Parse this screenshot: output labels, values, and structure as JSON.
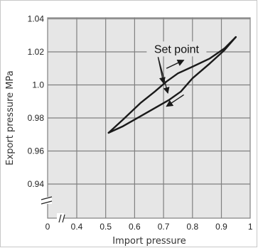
{
  "chart_data": {
    "type": "line",
    "title": "",
    "xlabel": "Import pressure",
    "ylabel": "Export pressure MPa",
    "xlim": [
      0.35,
      1.0
    ],
    "ylim": [
      0.92,
      1.04
    ],
    "x_ticks": [
      {
        "value": 0.4,
        "label": "0.4"
      },
      {
        "value": 0.5,
        "label": "0.5"
      },
      {
        "value": 0.6,
        "label": "0.6"
      },
      {
        "value": 0.7,
        "label": "0.7"
      },
      {
        "value": 0.8,
        "label": "0.8"
      },
      {
        "value": 0.9,
        "label": "0.9"
      },
      {
        "value": 1.0,
        "label": "1"
      }
    ],
    "x_zero_label": "0",
    "y_ticks": [
      {
        "value": 0.94,
        "label": "0.94"
      },
      {
        "value": 0.96,
        "label": "0.96"
      },
      {
        "value": 0.98,
        "label": "0.98"
      },
      {
        "value": 1.0,
        "label": "1.0"
      },
      {
        "value": 1.02,
        "label": "1.02"
      },
      {
        "value": 1.04,
        "label": "1.04"
      }
    ],
    "axis_break": true,
    "grid": true,
    "grid_color": "#808080",
    "background_color": "#e6e6e6",
    "line_color": "#1a1a1a",
    "series": [
      {
        "x": [
          0.51,
          0.56,
          0.62,
          0.67,
          0.71,
          0.75,
          0.8,
          0.86,
          0.91,
          0.95
        ],
        "y": [
          0.971,
          0.979,
          0.989,
          0.996,
          1.002,
          1.007,
          1.011,
          1.016,
          1.022,
          1.029
        ]
      },
      {
        "x": [
          0.51,
          0.56,
          0.62,
          0.68,
          0.72,
          0.76,
          0.8,
          0.86,
          0.91,
          0.95
        ],
        "y": [
          0.971,
          0.975,
          0.981,
          0.987,
          0.991,
          0.996,
          1.004,
          1.013,
          1.021,
          1.029
        ]
      }
    ],
    "annotations": [
      {
        "text": "Set point",
        "x": 0.745,
        "y": 1.022,
        "points_to": [
          [
            0.7,
            1.001
          ],
          [
            0.715,
            0.995
          ]
        ]
      }
    ],
    "arrows": [
      {
        "from": [
          0.71,
          1.01
        ],
        "to": [
          0.77,
          1.015
        ],
        "meaning": "increasing"
      },
      {
        "from": [
          0.77,
          0.994
        ],
        "to": [
          0.71,
          0.987
        ],
        "meaning": "decreasing"
      }
    ]
  }
}
